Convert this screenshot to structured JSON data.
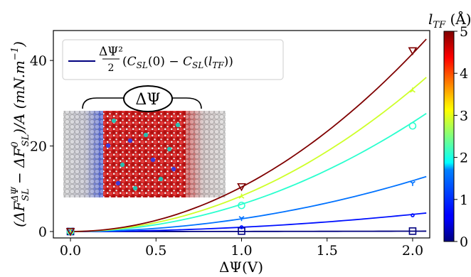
{
  "chart_data": {
    "type": "line",
    "xlabel": "ΔΨ(V)",
    "ylabel": "(ΔF_SL^ΔΨ − ΔF_SL^0)/A (mN.m⁻¹)",
    "xlim": [
      -0.1,
      2.1
    ],
    "ylim": [
      -1.5,
      47
    ],
    "x_ticks": [
      "0.0",
      "0.5",
      "1.0",
      "1.5",
      "2.0"
    ],
    "y_ticks": [
      "0",
      "20",
      "40"
    ],
    "grid": false,
    "legend": {
      "label": "ΔΨ²/2 (C_SL(0) − C_SL(l_TF))",
      "position": "top-left"
    },
    "colorbar": {
      "label": "l_TF (Å)",
      "min": 0,
      "max": 5,
      "ticks": [
        "0",
        "1",
        "2",
        "3",
        "4",
        "5"
      ],
      "colormap": "jet"
    },
    "inset": {
      "label": "ΔΨ",
      "description": "molecular simulation snapshot of electrolyte between two electrodes"
    },
    "series": [
      {
        "l_TF": 0.0,
        "color": "#00007f",
        "marker": "square",
        "x": [
          0,
          1,
          2
        ],
        "y": [
          0.0,
          0.1,
          0.1
        ],
        "fit_coeff": 0.02
      },
      {
        "l_TF": 0.5,
        "color": "#0010ff",
        "marker": "circle_small",
        "x": [
          0,
          1,
          2
        ],
        "y": [
          0.0,
          1.0,
          3.8
        ],
        "fit_coeff": 1.0
      },
      {
        "l_TF": 1.0,
        "color": "#0072ff",
        "marker": "tri_down",
        "x": [
          0,
          1,
          2
        ],
        "y": [
          0.0,
          3.1,
          11.3
        ],
        "fit_coeff": 2.97
      },
      {
        "l_TF": 2.0,
        "color": "#29ffce",
        "marker": "circle",
        "x": [
          0,
          1,
          2
        ],
        "y": [
          0.0,
          6.1,
          24.7
        ],
        "fit_coeff": 6.38
      },
      {
        "l_TF": 3.0,
        "color": "#ceff29",
        "marker": "tri_up",
        "x": [
          0,
          1,
          2
        ],
        "y": [
          0.0,
          8.2,
          33.0
        ],
        "fit_coeff": 8.33
      },
      {
        "l_TF": 5.0,
        "color": "#7f0000",
        "marker": "triangle_down",
        "x": [
          0,
          1,
          2
        ],
        "y": [
          0.0,
          10.5,
          42.3
        ],
        "fit_coeff": 10.4
      }
    ]
  }
}
